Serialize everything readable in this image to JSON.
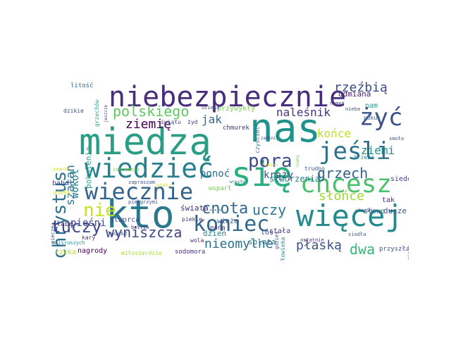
{
  "words": [
    {
      "text": "nas",
      "color": "#21918c"
    },
    {
      "text": "miedzą",
      "color": "#2a9e84"
    },
    {
      "text": "niebezpiecznie",
      "color": "#472d7b"
    },
    {
      "text": "się",
      "color": "#2ab07f"
    },
    {
      "text": "kto",
      "color": "#2a788e"
    },
    {
      "text": "więcej",
      "color": "#238a8d"
    },
    {
      "text": "wiedzieć",
      "color": "#27808e"
    },
    {
      "text": "chcesz",
      "color": "#4ac16d"
    },
    {
      "text": "jeśli",
      "color": "#2c718e"
    },
    {
      "text": "wiecznie",
      "color": "#33638d"
    },
    {
      "text": "żyć",
      "color": "#3b528b"
    },
    {
      "text": "koniec",
      "color": "#31688e"
    },
    {
      "text": "pora",
      "color": "#3d4d8a"
    },
    {
      "text": "chrystus",
      "color": "#2c728e"
    },
    {
      "text": "polskiego",
      "color": "#5ec962"
    },
    {
      "text": "grzech",
      "color": "#33638d"
    },
    {
      "text": "nie",
      "color": "#c8e020"
    },
    {
      "text": "tuczy",
      "color": "#3e4989"
    },
    {
      "text": "cnota",
      "color": "#31688e"
    },
    {
      "text": "wyniszcza",
      "color": "#404588"
    },
    {
      "text": "rzeźbią",
      "color": "#3e4a89"
    },
    {
      "text": "ziemię",
      "color": "#440154"
    },
    {
      "text": "nieomylne",
      "color": "#2c728e"
    },
    {
      "text": "płaską",
      "color": "#3b528b"
    },
    {
      "text": "uczy",
      "color": "#2a788e"
    },
    {
      "text": "dwa",
      "color": "#35b779"
    },
    {
      "text": "słońce",
      "color": "#a0da39"
    },
    {
      "text": "naleśnik",
      "color": "#46327e"
    },
    {
      "text": "krąży",
      "color": "#3e4a89"
    },
    {
      "text": "ziemi",
      "color": "#23898e"
    },
    {
      "text": "końce",
      "color": "#bddf26"
    },
    {
      "text": "ponoć",
      "color": "#2c728e"
    },
    {
      "text": "jak",
      "color": "#2f6b8e"
    },
    {
      "text": "stworzenia",
      "color": "#26828e"
    },
    {
      "text": "pieśni",
      "color": "#414487"
    },
    {
      "text": "szatan",
      "color": "#2c728e"
    },
    {
      "text": "wokół",
      "color": "#27808e"
    },
    {
      "text": "pokolenia",
      "color": "#22a884"
    },
    {
      "text": "przywykły",
      "color": "#7ad151"
    },
    {
      "text": "dusze",
      "color": "#3b528b"
    },
    {
      "text": "babel",
      "color": "#3e4a89"
    },
    {
      "text": "słabe",
      "color": "#46327e"
    },
    {
      "text": "świata...",
      "color": "#472c7a"
    },
    {
      "text": "stworca",
      "color": "#3e4989"
    },
    {
      "text": "dzień",
      "color": "#26828e"
    },
    {
      "text": "splata",
      "color": "#2a788e"
    },
    {
      "text": "stała",
      "color": "#443a83"
    },
    {
      "text": "wieża",
      "color": "#3b528b"
    },
    {
      "text": "odmiana",
      "color": "#481f70"
    },
    {
      "text": "nam",
      "color": "#1f9e89"
    },
    {
      "text": "tak",
      "color": "#46327e"
    },
    {
      "text": "słowo",
      "color": "#33638d"
    },
    {
      "text": "siedem",
      "color": "#404588"
    },
    {
      "text": "los",
      "color": "#3e4989"
    },
    {
      "text": "nagrody",
      "color": "#440154"
    },
    {
      "text": "czeka",
      "color": "#b5de2b"
    },
    {
      "text": "sodomora",
      "color": "#46327e"
    },
    {
      "text": "miłosierdzie",
      "color": "#a8db34"
    },
    {
      "text": "przyszła",
      "color": "#3b528b"
    },
    {
      "text": "piekle",
      "color": "#46327e"
    },
    {
      "text": "wola",
      "color": "#482878"
    },
    {
      "text": "pańa",
      "color": "#46327e"
    },
    {
      "text": "ucieka",
      "color": "#3b528b"
    },
    {
      "text": "chmurek",
      "color": "#46327e"
    },
    {
      "text": "trudno",
      "color": "#3b528b"
    },
    {
      "text": "trzeba",
      "color": "#26828e"
    },
    {
      "text": "pokus",
      "color": "#31688e"
    },
    {
      "text": "chorki",
      "color": "#3e4989"
    },
    {
      "text": "litość",
      "color": "#31688e"
    },
    {
      "text": "świątu",
      "color": "#3b528b"
    },
    {
      "text": "żyd",
      "color": "#46327e"
    },
    {
      "text": "judasz",
      "color": "#3b528b"
    },
    {
      "text": "kary",
      "color": "#472d7b"
    },
    {
      "text": "dzikie",
      "color": "#3e4989"
    },
    {
      "text": "namet",
      "color": "#3e4989"
    },
    {
      "text": "nieba",
      "color": "#3b528b"
    },
    {
      "text": "wsparł",
      "color": "#75d054"
    },
    {
      "text": "czyściec",
      "color": "#2a788e"
    },
    {
      "text": "grzechów",
      "color": "#22a884"
    },
    {
      "text": "smoła",
      "color": "#3b528b"
    },
    {
      "text": "gdzieś",
      "color": "#3b528b"
    },
    {
      "text": "tam",
      "color": "#3b528b"
    },
    {
      "text": "człowieka",
      "color": "#21918c"
    },
    {
      "text": "żałowania",
      "color": "#7ad151"
    },
    {
      "text": "widły",
      "color": "#d8e219"
    },
    {
      "text": "pacierz",
      "color": "#2a788e"
    },
    {
      "text": "ostatnie",
      "color": "#46327e"
    },
    {
      "text": "siodła",
      "color": "#3b528b"
    },
    {
      "text": "ptaki",
      "color": "#d8e219"
    },
    {
      "text": "pielgrzymi",
      "color": "#3b528b"
    },
    {
      "text": "jeszcze",
      "color": "#46327e"
    },
    {
      "text": "bestia",
      "color": "#46327e"
    },
    {
      "text": "najsroszych",
      "color": "#21918c"
    },
    {
      "text": "piecze",
      "color": "#3e4989"
    },
    {
      "text": "pomnik",
      "color": "#c8e020"
    },
    {
      "text": "zapraszam",
      "color": "#3b528b"
    },
    {
      "text": "znamy",
      "color": "#75d054"
    },
    {
      "text": "wrosły",
      "color": "#2c728e"
    },
    {
      "text": "zmian",
      "color": "#d8e219"
    },
    {
      "text": "zamknij",
      "color": "#3e4989"
    }
  ]
}
